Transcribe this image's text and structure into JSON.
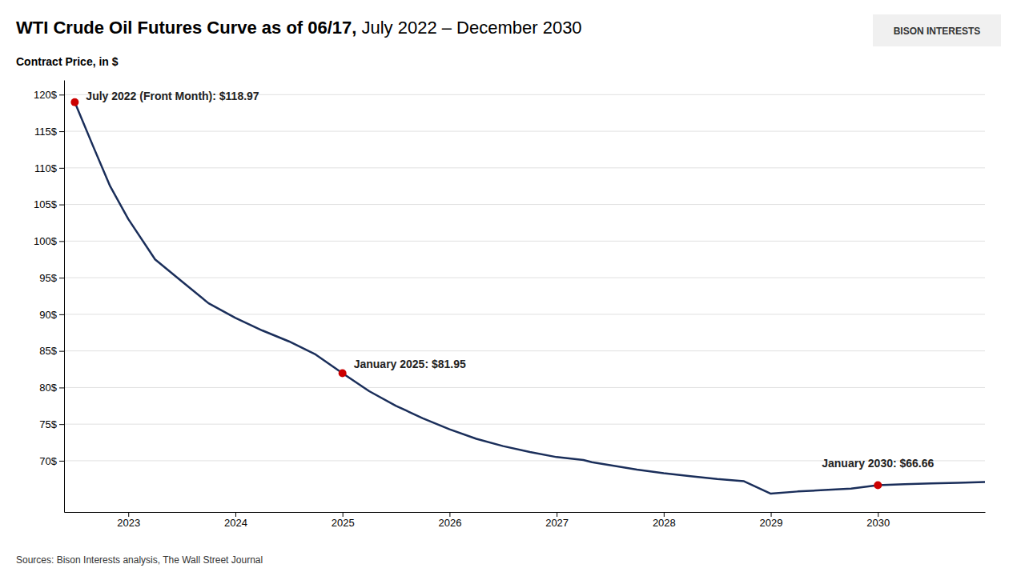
{
  "chart_data": {
    "type": "line",
    "title": "WTI Crude Oil Futures Curve as of 06/17,",
    "subtitle": "July 2022 – December 2030",
    "y_label": "Contract Price, in $",
    "source": "Sources: Bison Interests analysis, The Wall Street Journal",
    "logo": "BISON INTERESTS",
    "x": [
      2022.5,
      2022.67,
      2022.83,
      2023.0,
      2023.25,
      2023.5,
      2023.75,
      2024.0,
      2024.25,
      2024.5,
      2024.75,
      2025.0,
      2025.25,
      2025.5,
      2025.75,
      2026.0,
      2026.25,
      2026.5,
      2026.75,
      2027.0,
      2027.25,
      2027.33,
      2027.5,
      2027.75,
      2028.0,
      2028.25,
      2028.5,
      2028.75,
      2029.0,
      2029.25,
      2029.5,
      2029.75,
      2030.0,
      2030.25,
      2030.5,
      2030.75,
      2031.0
    ],
    "series": [
      {
        "color": "#1a2e5a",
        "values": [
          118.97,
          113.0,
          107.5,
          103.0,
          97.5,
          94.5,
          91.5,
          89.5,
          87.8,
          86.3,
          84.5,
          81.95,
          79.5,
          77.5,
          75.8,
          74.3,
          73.0,
          72.0,
          71.2,
          70.5,
          70.1,
          69.8,
          69.4,
          68.8,
          68.3,
          67.9,
          67.5,
          67.2,
          65.5,
          65.8,
          66.0,
          66.2,
          66.66,
          66.8,
          66.9,
          67.0,
          67.1
        ]
      }
    ],
    "annotations": [
      {
        "label": "July 2022 (Front Month): $118.97",
        "x": 2022.5,
        "y": 118.97,
        "color": "#cc0000",
        "marker": "circle"
      },
      {
        "label": "January 2025: $81.95",
        "x": 2025.0,
        "y": 81.95,
        "color": "#cc0000",
        "marker": "circle"
      },
      {
        "label": "January 2030: $66.66",
        "x": 2030.0,
        "y": 66.66,
        "color": "#cc0000",
        "marker": "circle"
      }
    ],
    "xlim": [
      2022.4,
      2031.0
    ],
    "xticks": [
      2023,
      2024,
      2025,
      2026,
      2027,
      2028,
      2029,
      2030
    ],
    "ylim": [
      63,
      122
    ],
    "yticks": [
      {
        "value": 70,
        "label": "70$"
      },
      {
        "value": 75,
        "label": "75$"
      },
      {
        "value": 80,
        "label": "80$"
      },
      {
        "value": 85,
        "label": "85$"
      },
      {
        "value": 90,
        "label": "90$"
      },
      {
        "value": 95,
        "label": "95$"
      },
      {
        "value": 100,
        "label": "100$"
      },
      {
        "value": 105,
        "label": "105$"
      },
      {
        "value": 110,
        "label": "110$"
      },
      {
        "value": 115,
        "label": "115$"
      },
      {
        "value": 120,
        "label": "120$"
      }
    ],
    "grid": true
  }
}
